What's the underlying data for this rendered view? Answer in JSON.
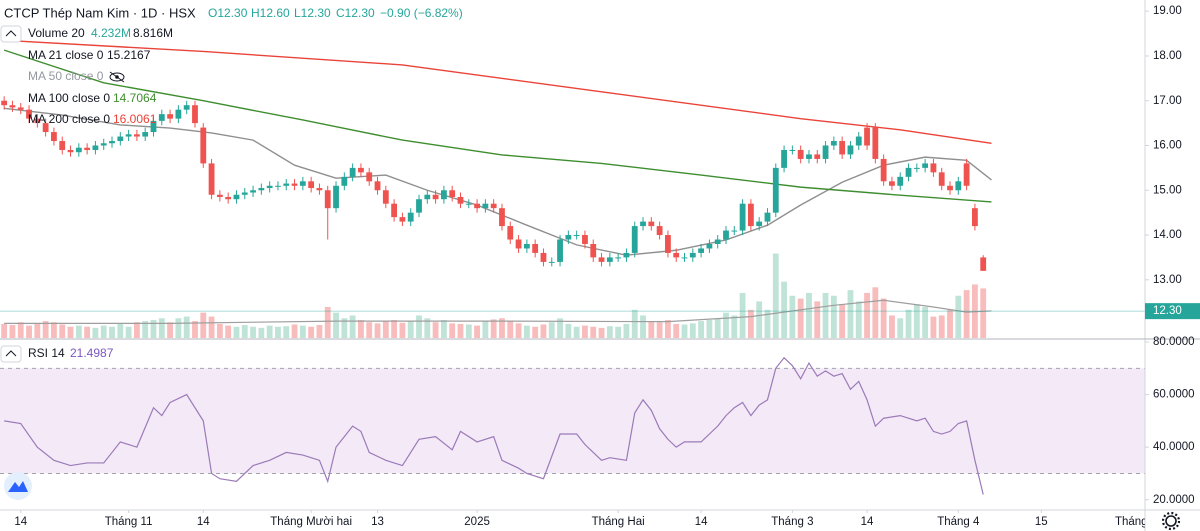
{
  "header": {
    "title": "CTCP Thép Nam Kim · 1D · HSX",
    "ohlc": [
      "O12.30",
      "H12.60",
      "L12.30",
      "C12.30",
      "−0.90 (−6.82%)"
    ]
  },
  "chart_data": [
    {
      "type": "candlestick",
      "open": [
        17.0,
        16.9,
        16.85,
        16.8,
        16.6,
        16.5,
        16.3,
        16.1,
        15.9,
        15.85,
        15.95,
        15.9,
        16.0,
        16.05,
        16.1,
        16.2,
        16.25,
        16.2,
        16.3,
        16.55,
        16.7,
        16.6,
        16.8,
        16.9,
        16.4,
        15.6,
        14.9,
        14.85,
        14.8,
        14.9,
        14.95,
        15.0,
        15.05,
        15.1,
        15.1,
        15.15,
        15.1,
        15.2,
        15.05,
        15.0,
        14.6,
        15.1,
        15.3,
        15.5,
        15.4,
        15.2,
        15.0,
        14.7,
        14.4,
        14.3,
        14.5,
        14.8,
        14.9,
        14.8,
        15.0,
        14.85,
        14.7,
        14.7,
        14.6,
        14.7,
        14.6,
        14.2,
        13.9,
        13.7,
        13.8,
        13.6,
        13.4,
        13.4,
        13.9,
        14.0,
        14.0,
        13.8,
        13.5,
        13.4,
        13.5,
        13.5,
        13.6,
        14.2,
        14.3,
        14.2,
        14.0,
        13.6,
        13.5,
        13.5,
        13.6,
        13.7,
        13.8,
        13.9,
        14.1,
        14.1,
        14.7,
        14.2,
        14.3,
        14.5,
        15.5,
        15.9,
        15.9,
        15.7,
        15.8,
        15.7,
        16.0,
        16.1,
        15.8,
        16.0,
        16.4,
        16.4,
        15.7,
        15.2,
        15.1,
        15.3,
        15.5,
        15.5,
        15.6,
        15.4,
        15.1,
        15.0,
        15.6,
        14.6,
        13.5
      ],
      "high": [
        17.1,
        17.0,
        16.95,
        16.9,
        16.7,
        16.6,
        16.4,
        16.2,
        16.0,
        16.05,
        16.05,
        16.1,
        16.15,
        16.2,
        16.3,
        16.35,
        16.35,
        16.4,
        16.65,
        16.8,
        16.8,
        16.9,
        17.0,
        17.0,
        16.5,
        15.7,
        15.0,
        14.95,
        15.0,
        15.05,
        15.1,
        15.15,
        15.2,
        15.2,
        15.25,
        15.25,
        15.3,
        15.3,
        15.15,
        15.1,
        15.2,
        15.4,
        15.6,
        15.6,
        15.5,
        15.3,
        15.1,
        14.8,
        14.5,
        14.6,
        14.9,
        15.0,
        15.0,
        15.1,
        15.1,
        14.95,
        14.8,
        14.8,
        14.8,
        14.8,
        14.7,
        14.3,
        14.0,
        13.9,
        13.9,
        13.7,
        13.5,
        14.0,
        14.1,
        14.1,
        14.1,
        13.9,
        13.6,
        13.6,
        13.6,
        13.7,
        14.3,
        14.4,
        14.4,
        14.3,
        14.1,
        13.7,
        13.6,
        13.7,
        13.8,
        13.9,
        14.0,
        14.2,
        14.2,
        14.8,
        14.8,
        14.4,
        14.6,
        15.6,
        16.0,
        16.0,
        16.0,
        15.9,
        15.9,
        16.1,
        16.2,
        16.2,
        16.1,
        16.3,
        16.5,
        16.5,
        15.8,
        15.3,
        15.4,
        15.6,
        15.6,
        15.7,
        15.7,
        15.5,
        15.2,
        15.3,
        15.7,
        14.7,
        13.55
      ],
      "low": [
        16.8,
        16.75,
        16.7,
        16.5,
        16.4,
        16.2,
        16.0,
        15.8,
        15.75,
        15.75,
        15.8,
        15.8,
        15.9,
        15.95,
        16.0,
        16.1,
        16.1,
        16.1,
        16.2,
        16.45,
        16.5,
        16.5,
        16.7,
        16.4,
        15.5,
        14.8,
        14.75,
        14.7,
        14.7,
        14.8,
        14.85,
        14.9,
        14.95,
        15.0,
        15.0,
        15.0,
        15.0,
        14.95,
        14.9,
        13.9,
        14.5,
        15.0,
        15.2,
        15.3,
        15.1,
        14.9,
        14.6,
        14.3,
        14.2,
        14.2,
        14.4,
        14.7,
        14.7,
        14.7,
        14.75,
        14.6,
        14.6,
        14.5,
        14.5,
        14.5,
        14.1,
        13.8,
        13.6,
        13.6,
        13.5,
        13.3,
        13.3,
        13.3,
        13.8,
        13.9,
        13.7,
        13.4,
        13.3,
        13.3,
        13.4,
        13.4,
        13.5,
        14.1,
        14.1,
        13.9,
        13.5,
        13.4,
        13.4,
        13.4,
        13.5,
        13.6,
        13.7,
        13.8,
        14.0,
        14.0,
        14.1,
        14.1,
        14.2,
        14.4,
        15.4,
        15.8,
        15.6,
        15.6,
        15.6,
        15.6,
        15.9,
        15.7,
        15.7,
        15.9,
        15.9,
        15.6,
        15.1,
        15.0,
        15.0,
        15.2,
        15.4,
        15.4,
        15.3,
        15.0,
        14.9,
        14.9,
        15.0,
        14.1,
        13.2
      ],
      "close": [
        16.9,
        16.85,
        16.8,
        16.6,
        16.5,
        16.3,
        16.1,
        15.9,
        15.85,
        15.95,
        15.9,
        16.0,
        16.05,
        16.1,
        16.2,
        16.25,
        16.2,
        16.3,
        16.55,
        16.7,
        16.6,
        16.8,
        16.9,
        16.5,
        15.6,
        14.9,
        14.85,
        14.8,
        14.9,
        14.95,
        15.0,
        15.05,
        15.1,
        15.1,
        15.15,
        15.1,
        15.2,
        15.05,
        15.0,
        14.6,
        15.1,
        15.3,
        15.5,
        15.4,
        15.2,
        15.0,
        14.7,
        14.4,
        14.3,
        14.5,
        14.8,
        14.9,
        14.8,
        15.0,
        14.85,
        14.7,
        14.7,
        14.6,
        14.7,
        14.6,
        14.2,
        13.9,
        13.7,
        13.8,
        13.6,
        13.4,
        13.4,
        13.9,
        14.0,
        14.0,
        13.8,
        13.5,
        13.4,
        13.5,
        13.5,
        13.6,
        14.2,
        14.3,
        14.2,
        14.0,
        13.6,
        13.5,
        13.5,
        13.6,
        13.7,
        13.8,
        13.9,
        14.1,
        14.1,
        14.7,
        14.2,
        14.3,
        14.5,
        15.5,
        15.9,
        15.9,
        15.7,
        15.8,
        15.7,
        16.0,
        16.1,
        15.8,
        16.0,
        16.2,
        16.0,
        15.7,
        15.2,
        15.1,
        15.3,
        15.5,
        15.5,
        15.6,
        15.4,
        15.1,
        15.0,
        15.2,
        15.1,
        14.2,
        13.2
      ],
      "up_color": "#26a69a",
      "down_color": "#ef5350",
      "xlim": [
        -0.5,
        137.5
      ],
      "ylim": [
        11.7,
        19.25
      ],
      "yticks": [
        {
          "value": 13,
          "label": "13.00"
        },
        {
          "value": 14,
          "label": "14.00"
        },
        {
          "value": 15,
          "label": "15.00"
        },
        {
          "value": 16,
          "label": "16.00"
        },
        {
          "value": 17,
          "label": "17.00"
        },
        {
          "value": 18,
          "label": "18.00"
        },
        {
          "value": 19,
          "label": "19.00"
        }
      ],
      "xticks": [
        {
          "value": 2,
          "label": "14"
        },
        {
          "value": 15,
          "label": "Tháng 11"
        },
        {
          "value": 24,
          "label": "14"
        },
        {
          "value": 37,
          "label": "Tháng Mười hai"
        },
        {
          "value": 45,
          "label": "13"
        },
        {
          "value": 57,
          "label": "2025"
        },
        {
          "value": 74,
          "label": "Tháng Hai"
        },
        {
          "value": 84,
          "label": "14"
        },
        {
          "value": 95,
          "label": "Tháng 3"
        },
        {
          "value": 104,
          "label": "14"
        },
        {
          "value": 115,
          "label": "Tháng 4"
        },
        {
          "value": 125,
          "label": "15"
        },
        {
          "value": 137.5,
          "label": "Tháng Năm"
        }
      ],
      "volume": {
        "name": "Volume 20",
        "ma_label": "4.232M",
        "value_label": "8.816M",
        "ylim": [
          0,
          60
        ],
        "up_color": "#bfe3d6",
        "down_color": "#f7bcbb",
        "values": [
          2.5,
          2.3,
          2.8,
          2.2,
          2.5,
          3.0,
          2.8,
          2.4,
          2.0,
          2.2,
          2.0,
          1.8,
          2.2,
          2.0,
          2.5,
          2.0,
          2.8,
          3.0,
          3.2,
          3.5,
          2.8,
          3.5,
          3.8,
          3.0,
          4.5,
          3.8,
          2.5,
          2.2,
          2.0,
          2.3,
          2.0,
          1.8,
          2.2,
          2.0,
          2.1,
          2.4,
          2.2,
          2.0,
          2.3,
          5.5,
          4.5,
          3.5,
          4.0,
          3.2,
          2.8,
          2.6,
          3.0,
          3.2,
          2.7,
          3.0,
          4.0,
          3.5,
          2.8,
          3.2,
          2.6,
          2.5,
          2.4,
          2.2,
          3.0,
          3.3,
          3.5,
          3.0,
          2.6,
          2.2,
          2.0,
          2.4,
          2.8,
          3.5,
          2.5,
          2.0,
          2.2,
          2.0,
          1.8,
          2.1,
          2.0,
          2.5,
          5.0,
          4.0,
          3.0,
          2.8,
          3.2,
          2.5,
          2.4,
          2.6,
          3.0,
          3.2,
          3.5,
          4.5,
          4.0,
          8.0,
          5.0,
          6.5,
          5.0,
          15.0,
          10.0,
          7.5,
          7.0,
          8.0,
          6.5,
          8.0,
          7.5,
          6.0,
          8.5,
          6.5,
          8.0,
          9.0,
          7.0,
          4.0,
          3.5,
          5.0,
          6.0,
          5.5,
          3.8,
          4.0,
          5.0,
          7.5,
          8.5,
          9.5,
          8.8
        ],
        "ma": {
          "color": "#9e9e9e",
          "x": [
            0,
            20,
            40,
            60,
            80,
            90,
            100,
            106,
            112,
            116,
            119
          ],
          "values": [
            2.6,
            2.6,
            3.0,
            3.0,
            2.9,
            3.8,
            5.8,
            6.7,
            5.5,
            4.6,
            4.8
          ]
        }
      },
      "overlays": [
        {
          "name": "MA 21 close 0",
          "value_label": "15.2167",
          "color": "#8f8f8f",
          "x": [
            0,
            7,
            14,
            20,
            25,
            30,
            35,
            40,
            46,
            51,
            57,
            63,
            69,
            75,
            81,
            87,
            92,
            96,
            101,
            106,
            111,
            116,
            119
          ],
          "values": [
            16.83,
            16.68,
            16.46,
            16.39,
            16.28,
            16.12,
            15.56,
            15.27,
            15.34,
            15.0,
            14.67,
            14.22,
            13.78,
            13.55,
            13.66,
            13.89,
            14.22,
            14.67,
            15.18,
            15.56,
            15.74,
            15.67,
            15.23
          ]
        },
        {
          "name": "MA 50 close 0",
          "hidden": true
        },
        {
          "name": "MA 100 close 0",
          "value_label": "14.7064",
          "color": "#3e8e2f",
          "x": [
            0,
            12,
            24,
            36,
            48,
            60,
            72,
            84,
            96,
            108,
            119
          ],
          "values": [
            18.13,
            17.4,
            17.0,
            16.57,
            16.12,
            15.79,
            15.6,
            15.34,
            15.07,
            14.89,
            14.74
          ]
        },
        {
          "name": "MA 200 close 0",
          "value_label": "16.0061",
          "color": "#ea4338",
          "x": [
            0,
            24,
            48,
            72,
            96,
            108,
            119
          ],
          "values": [
            18.35,
            18.1,
            17.8,
            17.2,
            16.6,
            16.35,
            16.05
          ]
        }
      ],
      "last_price": {
        "value": 12.3,
        "label": "12.30",
        "color": "#26a69a"
      }
    },
    {
      "type": "line",
      "name": "RSI 14",
      "value_label": "21.4987",
      "color": "#9c7ab8",
      "band": [
        30,
        70
      ],
      "band_color": "#f3e9f7",
      "xlim": [
        -0.5,
        137.5
      ],
      "ylim": [
        16.1,
        80.76
      ],
      "yticks": [
        {
          "value": 20,
          "label": "20.0000"
        },
        {
          "value": 40,
          "label": "40.0000"
        },
        {
          "value": 60,
          "label": "60.0000"
        },
        {
          "value": 80,
          "label": "80.0000"
        }
      ],
      "x": [
        0,
        2,
        4,
        6,
        8,
        10,
        12,
        14,
        16,
        18,
        19,
        20,
        22,
        24,
        25,
        26,
        28,
        30,
        32,
        34,
        36,
        38,
        39,
        40,
        42,
        43,
        44,
        46,
        48,
        50,
        52,
        54,
        55,
        57,
        59,
        60,
        62,
        63,
        65,
        67,
        69,
        70,
        72,
        73,
        75,
        76,
        77,
        78,
        79,
        80,
        81,
        82,
        84,
        86,
        87,
        88,
        89,
        90,
        91,
        92,
        93,
        94,
        95,
        96,
        97,
        98,
        99,
        100,
        101,
        102,
        103,
        104,
        105,
        106,
        108,
        110,
        111,
        112,
        113,
        114,
        115,
        116,
        117,
        118
      ],
      "values": [
        50,
        49,
        40,
        35,
        33,
        34,
        34,
        42,
        40,
        55,
        52,
        57,
        60,
        50,
        30,
        28,
        27,
        33,
        35,
        38,
        37,
        35,
        27,
        40,
        48,
        46,
        38,
        35,
        33,
        43,
        44,
        39,
        46,
        42,
        44,
        35,
        32,
        30,
        28,
        45,
        45,
        41,
        35,
        36,
        35,
        53,
        58,
        54,
        47,
        43,
        40,
        42,
        42,
        48,
        52,
        55,
        57,
        52,
        56,
        58,
        70,
        74,
        71,
        66,
        72,
        67,
        69,
        67,
        68,
        62,
        65,
        58,
        48,
        51,
        52,
        50,
        51,
        46,
        45,
        46,
        49,
        50,
        35,
        22
      ]
    }
  ]
}
